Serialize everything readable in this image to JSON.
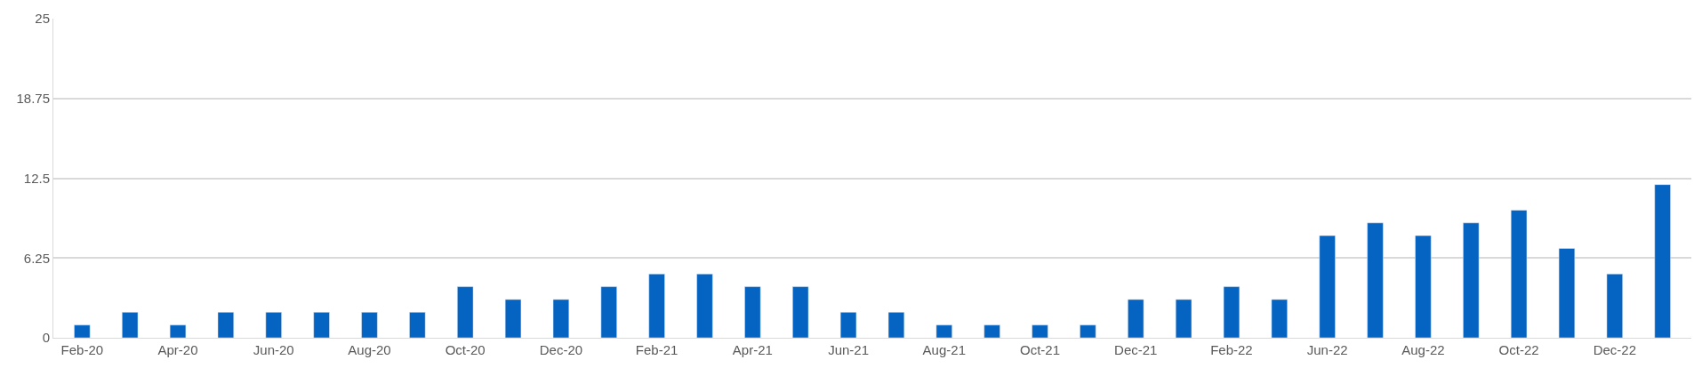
{
  "chart_data": {
    "type": "bar",
    "categories": [
      "Feb-20",
      null,
      "Apr-20",
      null,
      "Jun-20",
      null,
      "Aug-20",
      null,
      "Oct-20",
      null,
      "Dec-20",
      null,
      "Feb-21",
      null,
      "Apr-21",
      null,
      "Jun-21",
      null,
      "Aug-21",
      null,
      "Oct-21",
      null,
      "Dec-21",
      null,
      "Feb-22",
      null,
      "Jun-22",
      null,
      "Aug-22",
      null,
      "Oct-22",
      null,
      "Dec-22",
      null
    ],
    "values": [
      1,
      2,
      1,
      2,
      2,
      2,
      2,
      2,
      4,
      3,
      3,
      4,
      5,
      5,
      4,
      4,
      2,
      2,
      1,
      1,
      1,
      1,
      3,
      3,
      4,
      3,
      8,
      9,
      8,
      9,
      10,
      7,
      5,
      12
    ],
    "color": "#0563c1",
    "ylim": [
      0,
      25
    ],
    "yticks": [
      0,
      6.25,
      12.5,
      18.75,
      25
    ],
    "grid": "y"
  }
}
